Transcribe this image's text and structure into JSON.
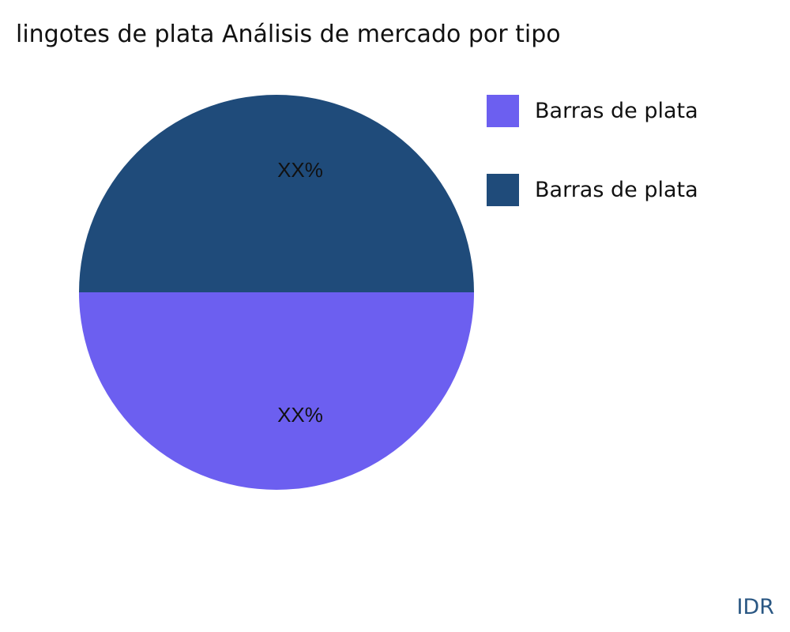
{
  "chart_data": {
    "type": "pie",
    "title": "lingotes de plata Análisis de mercado por tipo",
    "slices": [
      {
        "label": "Barras de plata",
        "value": 50,
        "text": "XX%",
        "color": "#6c5ff0"
      },
      {
        "label": "Barras de plata",
        "value": 50,
        "text": "XX%",
        "color": "#1f4b7a"
      }
    ],
    "legend_position": "right"
  },
  "brand": "IDR"
}
